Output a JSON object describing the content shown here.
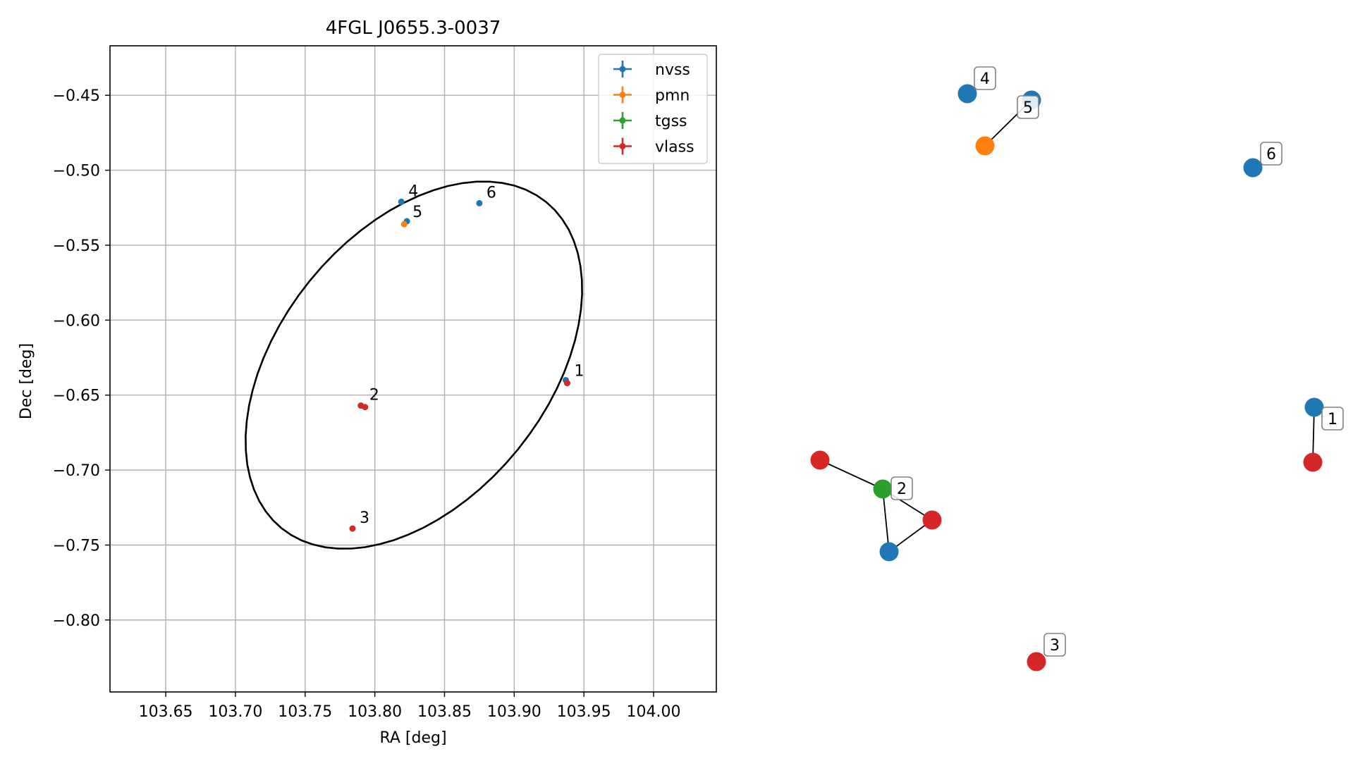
{
  "chart_data": [
    {
      "type": "scatter",
      "title": "4FGL J0655.3-0037",
      "xlabel": "RA [deg]",
      "ylabel": "Dec [deg]",
      "xlim": [
        103.61,
        104.045
      ],
      "ylim": [
        -0.848,
        -0.417
      ],
      "xticks": [
        103.65,
        103.7,
        103.75,
        103.8,
        103.85,
        103.9,
        103.95,
        104.0
      ],
      "xtick_labels": [
        "103.65",
        "103.70",
        "103.75",
        "103.80",
        "103.85",
        "103.90",
        "103.95",
        "104.00"
      ],
      "yticks": [
        -0.45,
        -0.5,
        -0.55,
        -0.6,
        -0.65,
        -0.7,
        -0.75,
        -0.8
      ],
      "ytick_labels": [
        "−0.45",
        "−0.50",
        "−0.55",
        "−0.60",
        "−0.65",
        "−0.70",
        "−0.75",
        "−0.80"
      ],
      "grid": true,
      "legend_position": "top-right",
      "series": [
        {
          "name": "nvss",
          "color": "#1f77b4",
          "points": [
            [
              103.937,
              -0.64
            ],
            [
              103.819,
              -0.521
            ],
            [
              103.823,
              -0.534
            ],
            [
              103.875,
              -0.522
            ]
          ]
        },
        {
          "name": "pmn",
          "color": "#ff7f0e",
          "points": [
            [
              103.821,
              -0.536
            ]
          ]
        },
        {
          "name": "tgss",
          "color": "#2ca02c",
          "points": [
            [
              103.79,
              -0.657
            ]
          ]
        },
        {
          "name": "vlass",
          "color": "#d62728",
          "points": [
            [
              103.938,
              -0.642
            ],
            [
              103.79,
              -0.657
            ],
            [
              103.793,
              -0.658
            ],
            [
              103.784,
              -0.739
            ]
          ]
        }
      ],
      "point_labels": [
        {
          "text": "1",
          "x": 103.938,
          "y": -0.641
        },
        {
          "text": "2",
          "x": 103.791,
          "y": -0.657
        },
        {
          "text": "3",
          "x": 103.784,
          "y": -0.739
        },
        {
          "text": "4",
          "x": 103.819,
          "y": -0.521
        },
        {
          "text": "5",
          "x": 103.822,
          "y": -0.535
        },
        {
          "text": "6",
          "x": 103.875,
          "y": -0.522
        }
      ],
      "ellipse": {
        "center": [
          103.828,
          -0.63
        ],
        "color": "#000000"
      }
    },
    {
      "type": "network",
      "axes": false,
      "nodes": [
        {
          "id": "a",
          "color": "#1f77b4"
        },
        {
          "id": "b",
          "color": "#d62728"
        },
        {
          "id": "c",
          "color": "#2ca02c"
        },
        {
          "id": "d",
          "color": "#d62728"
        },
        {
          "id": "e",
          "color": "#1f77b4"
        },
        {
          "id": "f",
          "color": "#d62728"
        },
        {
          "id": "g",
          "color": "#d62728"
        },
        {
          "id": "h",
          "color": "#1f77b4"
        },
        {
          "id": "i",
          "color": "#1f77b4"
        },
        {
          "id": "j",
          "color": "#ff7f0e"
        },
        {
          "id": "k",
          "color": "#1f77b4"
        }
      ],
      "edges": [
        [
          "a",
          "b"
        ],
        [
          "c",
          "d"
        ],
        [
          "c",
          "f"
        ],
        [
          "c",
          "e"
        ],
        [
          "f",
          "e"
        ],
        [
          "i",
          "j"
        ]
      ],
      "labels": [
        "1",
        "2",
        "3",
        "4",
        "5",
        "6"
      ]
    }
  ]
}
